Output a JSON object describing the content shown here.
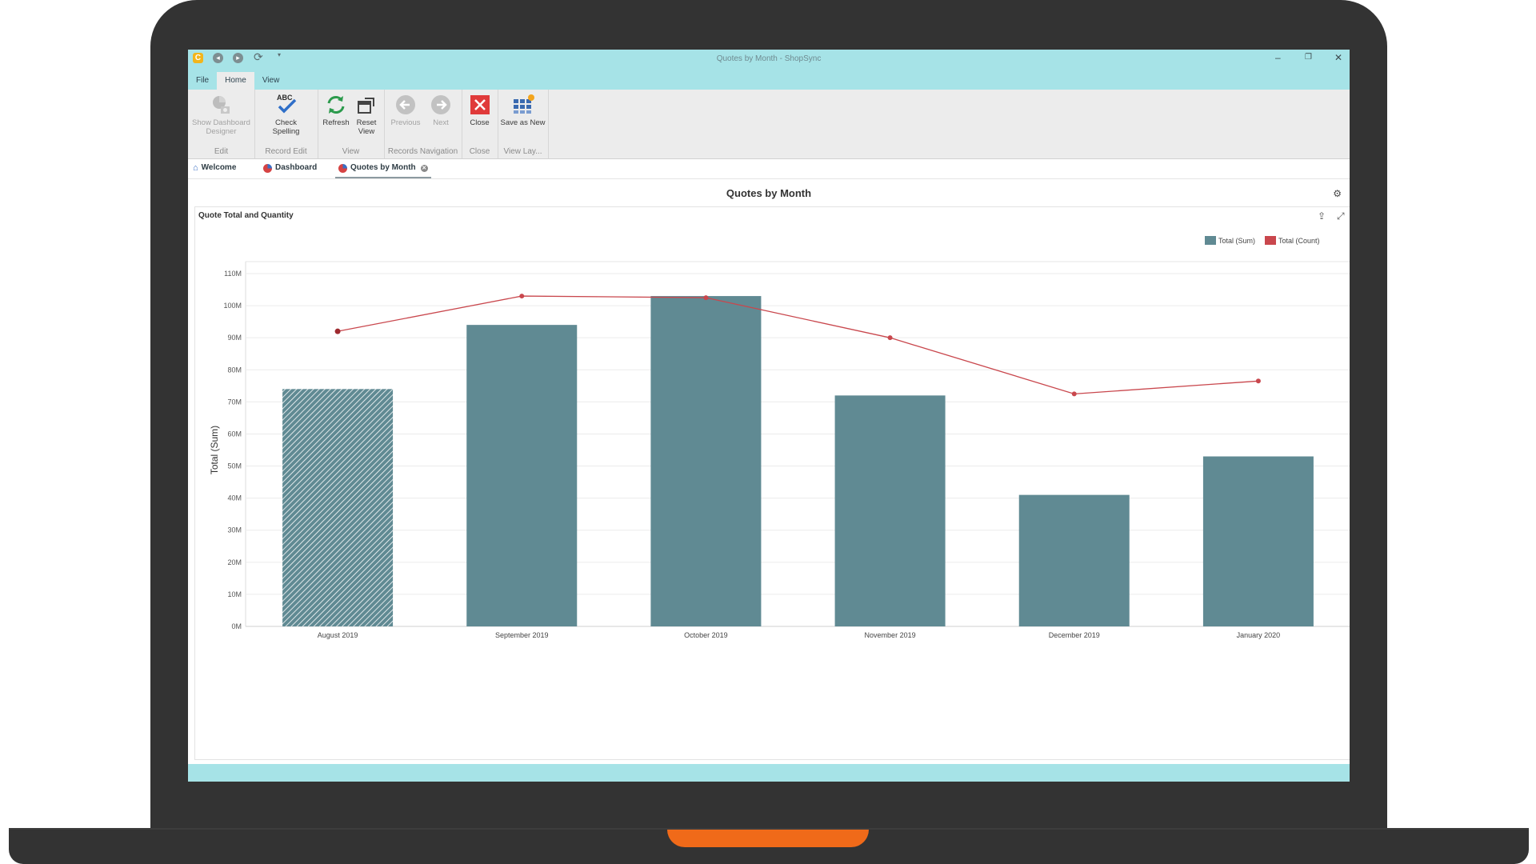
{
  "window": {
    "title": "Quotes by Month - ShopSync",
    "minimize": "–",
    "restore": "❐",
    "close": "✕"
  },
  "quick_access": {
    "app_letter": "C",
    "back": "◂",
    "forward": "▸",
    "refresh": "⟳",
    "dropdown": "▾"
  },
  "menu": {
    "tabs": [
      "File",
      "Home",
      "View"
    ],
    "active": "Home"
  },
  "ribbon": {
    "groups": [
      {
        "label": "Edit",
        "buttons": [
          {
            "label1": "Show Dashboard",
            "label2": "Designer",
            "icon": "dashboard-designer-icon",
            "enabled": false
          }
        ]
      },
      {
        "label": "Record Edit",
        "buttons": [
          {
            "label1": "Check",
            "label2": "Spelling",
            "icon": "spell-check-icon",
            "enabled": true
          }
        ]
      },
      {
        "label": "View",
        "buttons": [
          {
            "label1": "Refresh",
            "label2": "",
            "icon": "refresh-icon",
            "enabled": true
          },
          {
            "label1": "Reset",
            "label2": "View",
            "icon": "reset-view-icon",
            "enabled": true
          }
        ]
      },
      {
        "label": "Records Navigation",
        "buttons": [
          {
            "label1": "Previous",
            "label2": "",
            "icon": "arrow-left-icon",
            "enabled": false
          },
          {
            "label1": "Next",
            "label2": "",
            "icon": "arrow-right-icon",
            "enabled": false
          }
        ]
      },
      {
        "label": "Close",
        "buttons": [
          {
            "label1": "Close",
            "label2": "",
            "icon": "close-icon",
            "enabled": true
          }
        ]
      },
      {
        "label": "View Lay...",
        "buttons": [
          {
            "label1": "Save as New",
            "label2": "",
            "icon": "save-layout-icon",
            "enabled": true
          }
        ]
      }
    ],
    "abc_glyph": "ABC"
  },
  "doc_tabs": [
    {
      "label": "Welcome",
      "icon": "home-icon",
      "active": false,
      "closable": false
    },
    {
      "label": "Dashboard",
      "icon": "dashboard-icon",
      "active": false,
      "closable": false
    },
    {
      "label": "Quotes by Month",
      "icon": "dashboard-icon",
      "active": true,
      "closable": true
    }
  ],
  "dashboard": {
    "title": "Quotes by Month",
    "panel_title": "Quote Total and Quantity",
    "filter_icon": "filter-settings-icon",
    "export_icon": "export-icon",
    "maximize_icon": "maximize-icon"
  },
  "colors": {
    "bar": "#608a93",
    "line": "#c9474d",
    "titlebar": "#a6e3e7",
    "ribbon": "#ececec"
  },
  "chart_data": {
    "type": "bar",
    "categories": [
      "August 2019",
      "September 2019",
      "October 2019",
      "November 2019",
      "December 2019",
      "January 2020"
    ],
    "series": [
      {
        "name": "Total (Sum)",
        "type": "bar",
        "values": [
          74,
          94,
          103,
          72,
          41,
          53
        ],
        "unit": "M"
      },
      {
        "name": "Total (Count)",
        "type": "line",
        "values": [
          92,
          103,
          102.5,
          90,
          72.5,
          76.5
        ]
      }
    ],
    "highlighted_category": "August 2019",
    "ylabel": "Total (Sum)",
    "ylim": [
      0,
      110
    ],
    "yticks": [
      "0M",
      "10M",
      "20M",
      "30M",
      "40M",
      "50M",
      "60M",
      "70M",
      "80M",
      "90M",
      "100M",
      "110M"
    ],
    "legend": "top-right",
    "grid": true
  }
}
